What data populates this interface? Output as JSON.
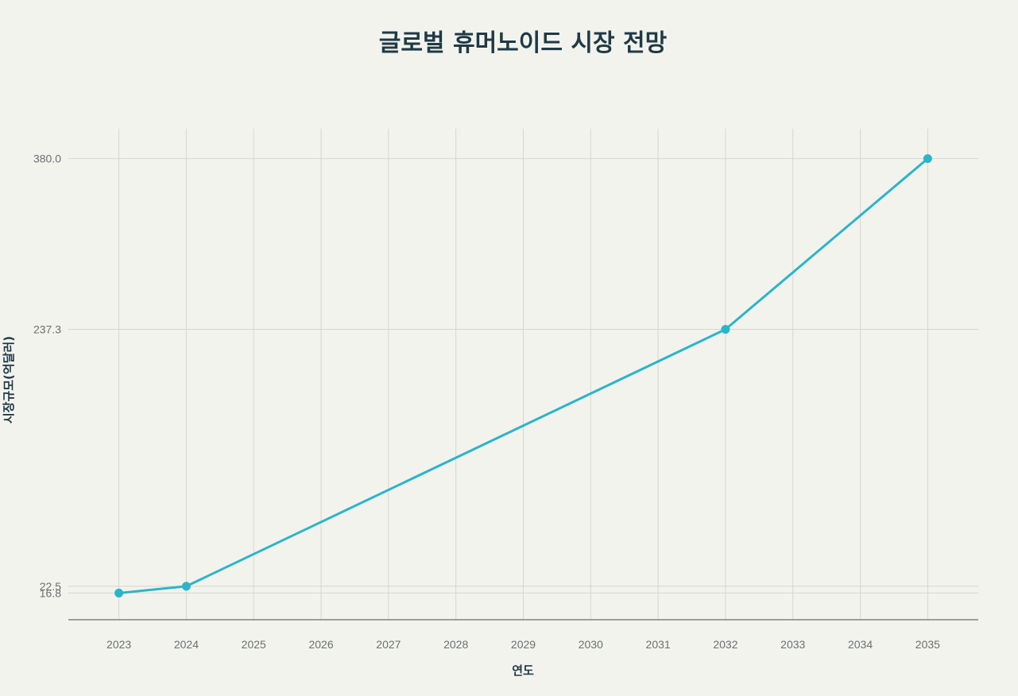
{
  "chart_data": {
    "type": "line",
    "title": "글로벌 휴머노이드 시장 전망",
    "xlabel": "연도",
    "ylabel": "시장규모(억달러)",
    "x_ticks": [
      2023,
      2024,
      2025,
      2026,
      2027,
      2028,
      2029,
      2030,
      2031,
      2032,
      2033,
      2034,
      2035
    ],
    "xlim": [
      2022.25,
      2035.75
    ],
    "y_ticks": [
      16.8,
      22.5,
      237.3,
      380.0
    ],
    "y_tick_labels": [
      "16.8",
      "22.5",
      "237.3",
      "380.0"
    ],
    "ylim": [
      -5.5,
      405
    ],
    "grid": true,
    "series": [
      {
        "x": [
          2023,
          2024,
          2032,
          2035
        ],
        "y": [
          16.8,
          22.5,
          237.3,
          380.0
        ],
        "color": "#2bb5c9"
      }
    ]
  }
}
